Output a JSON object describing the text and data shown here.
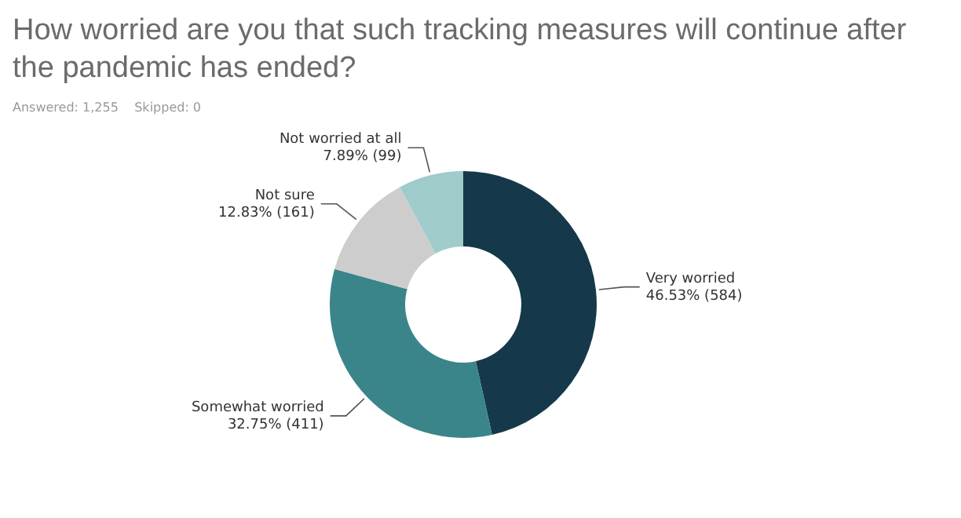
{
  "chart_data": {
    "type": "donut",
    "title": "How worried are you that such tracking measures will continue after the pandemic has ended?",
    "subtitle": "Answered: 1,255    Skipped: 0",
    "categories": [
      "Very worried",
      "Somewhat worried",
      "Not sure",
      "Not worried at all"
    ],
    "values": [
      46.53,
      32.75,
      12.83,
      7.89
    ],
    "value_labels": [
      "46.53% (584)",
      "32.75% (411)",
      "12.83% (161)",
      "7.89% (99)"
    ],
    "colors": [
      "#15384a",
      "#3a8589",
      "#cdcdcd",
      "#9fcbcb"
    ],
    "legend": false
  }
}
